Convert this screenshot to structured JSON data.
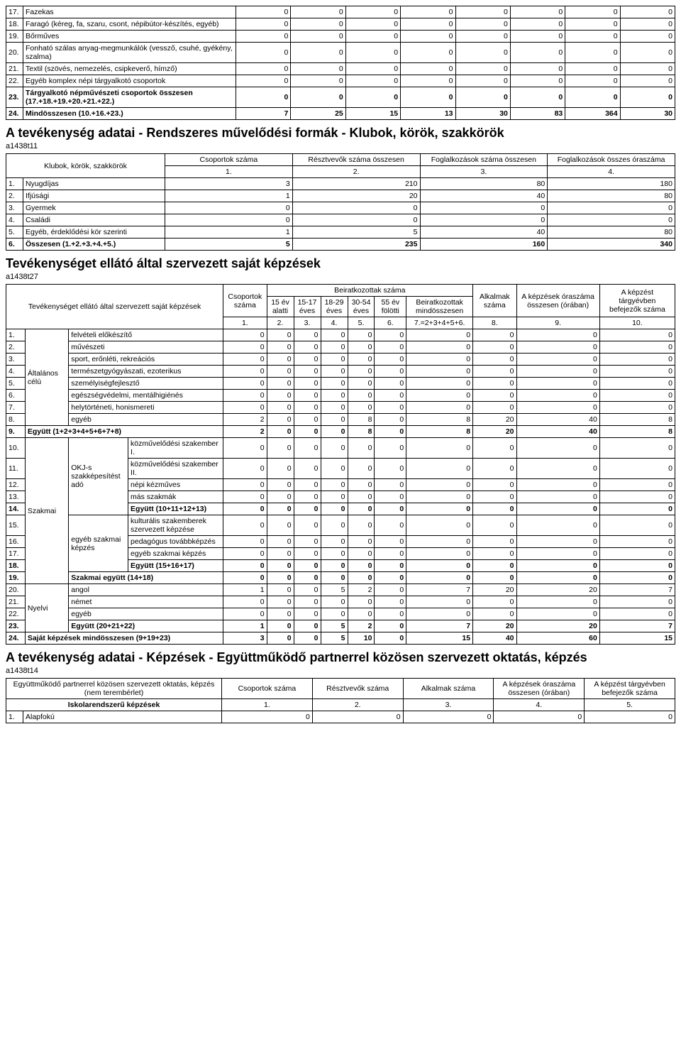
{
  "t1": {
    "rows": [
      {
        "n": "17.",
        "label": "Fazekas",
        "v": [
          "0",
          "0",
          "0",
          "0",
          "0",
          "0",
          "0",
          "0"
        ]
      },
      {
        "n": "18.",
        "label": "Faragó (kéreg, fa, szaru, csont, népibútor-készítés, egyéb)",
        "v": [
          "0",
          "0",
          "0",
          "0",
          "0",
          "0",
          "0",
          "0"
        ]
      },
      {
        "n": "19.",
        "label": "Bőrműves",
        "v": [
          "0",
          "0",
          "0",
          "0",
          "0",
          "0",
          "0",
          "0"
        ]
      },
      {
        "n": "20.",
        "label": "Fonható szálas anyag-megmunkálók (vessző, csuhé, gyékény, szalma)",
        "v": [
          "0",
          "0",
          "0",
          "0",
          "0",
          "0",
          "0",
          "0"
        ]
      },
      {
        "n": "21.",
        "label": "Textil (szövés, nemezelés, csipkeverő, hímző)",
        "v": [
          "0",
          "0",
          "0",
          "0",
          "0",
          "0",
          "0",
          "0"
        ]
      },
      {
        "n": "22.",
        "label": "Egyéb komplex népi tárgyalkotó csoportok",
        "v": [
          "0",
          "0",
          "0",
          "0",
          "0",
          "0",
          "0",
          "0"
        ]
      },
      {
        "n": "23.",
        "label": "Tárgyalkotó népművészeti csoportok összesen (17.+18.+19.+20.+21.+22.)",
        "v": [
          "0",
          "0",
          "0",
          "0",
          "0",
          "0",
          "0",
          "0"
        ],
        "bold": true
      },
      {
        "n": "24.",
        "label": "Mindösszesen (10.+16.+23.)",
        "v": [
          "7",
          "25",
          "15",
          "13",
          "30",
          "83",
          "364",
          "30"
        ],
        "bold": true
      }
    ]
  },
  "s2": {
    "title": "A tevékenység adatai - Rendszeres művelődési formák - Klubok, körök, szakkörök",
    "code": "a1438t11",
    "corner": "Klubok, körök, szakkörök",
    "headers": [
      "Csoportok száma",
      "Résztvevők száma összesen",
      "Foglalkozások száma összesen",
      "Foglalkozások összes óraszáma"
    ],
    "nums": [
      "1.",
      "2.",
      "3.",
      "4."
    ],
    "rows": [
      {
        "n": "1.",
        "label": "Nyugdíjas",
        "v": [
          "3",
          "210",
          "80",
          "180"
        ]
      },
      {
        "n": "2.",
        "label": "Ifjúsági",
        "v": [
          "1",
          "20",
          "40",
          "80"
        ]
      },
      {
        "n": "3.",
        "label": "Gyermek",
        "v": [
          "0",
          "0",
          "0",
          "0"
        ]
      },
      {
        "n": "4.",
        "label": "Családi",
        "v": [
          "0",
          "0",
          "0",
          "0"
        ]
      },
      {
        "n": "5.",
        "label": "Egyéb, érdeklődési kör szerinti",
        "v": [
          "1",
          "5",
          "40",
          "80"
        ]
      },
      {
        "n": "6.",
        "label": "Összesen (1.+2.+3.+4.+5.)",
        "v": [
          "5",
          "235",
          "160",
          "340"
        ],
        "bold": true
      }
    ]
  },
  "s3": {
    "title": "Tevékenységet ellátó által szervezett saját képzések",
    "code": "a1438t27",
    "corner": "Tevékenységet ellátó által szervezett saját képzések",
    "h_csop": "Csoportok száma",
    "h_beir": "Beiratkozottak száma",
    "h_alk": "Alkalmak száma",
    "h_ora": "A képzések óraszáma összesen (órában)",
    "h_bef": "A képzést tárgyévben befejezők száma",
    "sub": [
      "15 év alatti",
      "15-17 éves",
      "18-29 éves",
      "30-54 éves",
      "55 év fölötti",
      "Beiratkozottak mindösszesen"
    ],
    "colnums": [
      "1.",
      "2.",
      "3.",
      "4.",
      "5.",
      "6.",
      "7.=2+3+4+5+6.",
      "8.",
      "9.",
      "10."
    ],
    "cat_alt": "Általános célú",
    "cat_szak": "Szakmai",
    "cat_okj": "OKJ-s szakképesítést adó",
    "cat_egyszak": "egyéb szakmai képzés",
    "cat_nyelvi": "Nyelvi",
    "rows": [
      {
        "n": "1.",
        "label": "felvételi előkészítő",
        "v": [
          "0",
          "0",
          "0",
          "0",
          "0",
          "0",
          "0",
          "0",
          "0",
          "0"
        ]
      },
      {
        "n": "2.",
        "label": "művészeti",
        "v": [
          "0",
          "0",
          "0",
          "0",
          "0",
          "0",
          "0",
          "0",
          "0",
          "0"
        ]
      },
      {
        "n": "3.",
        "label": "sport, erőnléti, rekreációs",
        "v": [
          "0",
          "0",
          "0",
          "0",
          "0",
          "0",
          "0",
          "0",
          "0",
          "0"
        ]
      },
      {
        "n": "4.",
        "label": "természetgyógyászati, ezoterikus",
        "v": [
          "0",
          "0",
          "0",
          "0",
          "0",
          "0",
          "0",
          "0",
          "0",
          "0"
        ]
      },
      {
        "n": "5.",
        "label": "személyiségfejlesztő",
        "v": [
          "0",
          "0",
          "0",
          "0",
          "0",
          "0",
          "0",
          "0",
          "0",
          "0"
        ]
      },
      {
        "n": "6.",
        "label": "egészségvédelmi, mentálhigiénés",
        "v": [
          "0",
          "0",
          "0",
          "0",
          "0",
          "0",
          "0",
          "0",
          "0",
          "0"
        ]
      },
      {
        "n": "7.",
        "label": "helytörténeti, honismereti",
        "v": [
          "0",
          "0",
          "0",
          "0",
          "0",
          "0",
          "0",
          "0",
          "0",
          "0"
        ]
      },
      {
        "n": "8.",
        "label": "egyéb",
        "v": [
          "2",
          "0",
          "0",
          "0",
          "8",
          "0",
          "8",
          "20",
          "40",
          "8"
        ]
      },
      {
        "n": "9.",
        "label": "Együtt (1+2+3+4+5+6+7+8)",
        "v": [
          "2",
          "0",
          "0",
          "0",
          "8",
          "0",
          "8",
          "20",
          "40",
          "8"
        ],
        "bold": true
      },
      {
        "n": "10.",
        "label": "közművelődési szakember I.",
        "v": [
          "0",
          "0",
          "0",
          "0",
          "0",
          "0",
          "0",
          "0",
          "0",
          "0"
        ]
      },
      {
        "n": "11.",
        "label": "közművelődési szakember II.",
        "v": [
          "0",
          "0",
          "0",
          "0",
          "0",
          "0",
          "0",
          "0",
          "0",
          "0"
        ]
      },
      {
        "n": "12.",
        "label": "népi kézműves",
        "v": [
          "0",
          "0",
          "0",
          "0",
          "0",
          "0",
          "0",
          "0",
          "0",
          "0"
        ]
      },
      {
        "n": "13.",
        "label": "más szakmák",
        "v": [
          "0",
          "0",
          "0",
          "0",
          "0",
          "0",
          "0",
          "0",
          "0",
          "0"
        ]
      },
      {
        "n": "14.",
        "label": "Együtt (10+11+12+13)",
        "v": [
          "0",
          "0",
          "0",
          "0",
          "0",
          "0",
          "0",
          "0",
          "0",
          "0"
        ],
        "bold": true
      },
      {
        "n": "15.",
        "label": "kulturális szakemberek szervezett képzése",
        "v": [
          "0",
          "0",
          "0",
          "0",
          "0",
          "0",
          "0",
          "0",
          "0",
          "0"
        ]
      },
      {
        "n": "16.",
        "label": "pedagógus továbbképzés",
        "v": [
          "0",
          "0",
          "0",
          "0",
          "0",
          "0",
          "0",
          "0",
          "0",
          "0"
        ]
      },
      {
        "n": "17.",
        "label": "egyéb szakmai képzés",
        "v": [
          "0",
          "0",
          "0",
          "0",
          "0",
          "0",
          "0",
          "0",
          "0",
          "0"
        ]
      },
      {
        "n": "18.",
        "label": "Együtt (15+16+17)",
        "v": [
          "0",
          "0",
          "0",
          "0",
          "0",
          "0",
          "0",
          "0",
          "0",
          "0"
        ],
        "bold": true
      },
      {
        "n": "19.",
        "label": "Szakmai együtt (14+18)",
        "v": [
          "0",
          "0",
          "0",
          "0",
          "0",
          "0",
          "0",
          "0",
          "0",
          "0"
        ],
        "bold": true
      },
      {
        "n": "20.",
        "label": "angol",
        "v": [
          "1",
          "0",
          "0",
          "5",
          "2",
          "0",
          "7",
          "20",
          "20",
          "7"
        ]
      },
      {
        "n": "21.",
        "label": "német",
        "v": [
          "0",
          "0",
          "0",
          "0",
          "0",
          "0",
          "0",
          "0",
          "0",
          "0"
        ]
      },
      {
        "n": "22.",
        "label": "egyéb",
        "v": [
          "0",
          "0",
          "0",
          "0",
          "0",
          "0",
          "0",
          "0",
          "0",
          "0"
        ]
      },
      {
        "n": "23.",
        "label": "Együtt (20+21+22)",
        "v": [
          "1",
          "0",
          "0",
          "5",
          "2",
          "0",
          "7",
          "20",
          "20",
          "7"
        ],
        "bold": true
      },
      {
        "n": "24.",
        "label": "Saját képzések mindösszesen (9+19+23)",
        "v": [
          "3",
          "0",
          "0",
          "5",
          "10",
          "0",
          "15",
          "40",
          "60",
          "15"
        ],
        "bold": true
      }
    ]
  },
  "s4": {
    "title": "A tevékenység adatai - Képzések - Együttműködő partnerrel közösen szervezett oktatás, képzés",
    "code": "a1438t14",
    "corner": "Együttműködő partnerrel közösen szervezett oktatás, képzés (nem terembérlet)",
    "sub": "Iskolarendszerű képzések",
    "headers": [
      "Csoportok száma",
      "Résztvevők száma",
      "Alkalmak száma",
      "A képzések óraszáma összesen (órában)",
      "A képzést tárgyévben befejezők száma"
    ],
    "nums": [
      "1.",
      "2.",
      "3.",
      "4.",
      "5."
    ],
    "row": {
      "n": "1.",
      "label": "Alapfokú",
      "v": [
        "0",
        "0",
        "0",
        "0",
        "0"
      ]
    }
  }
}
